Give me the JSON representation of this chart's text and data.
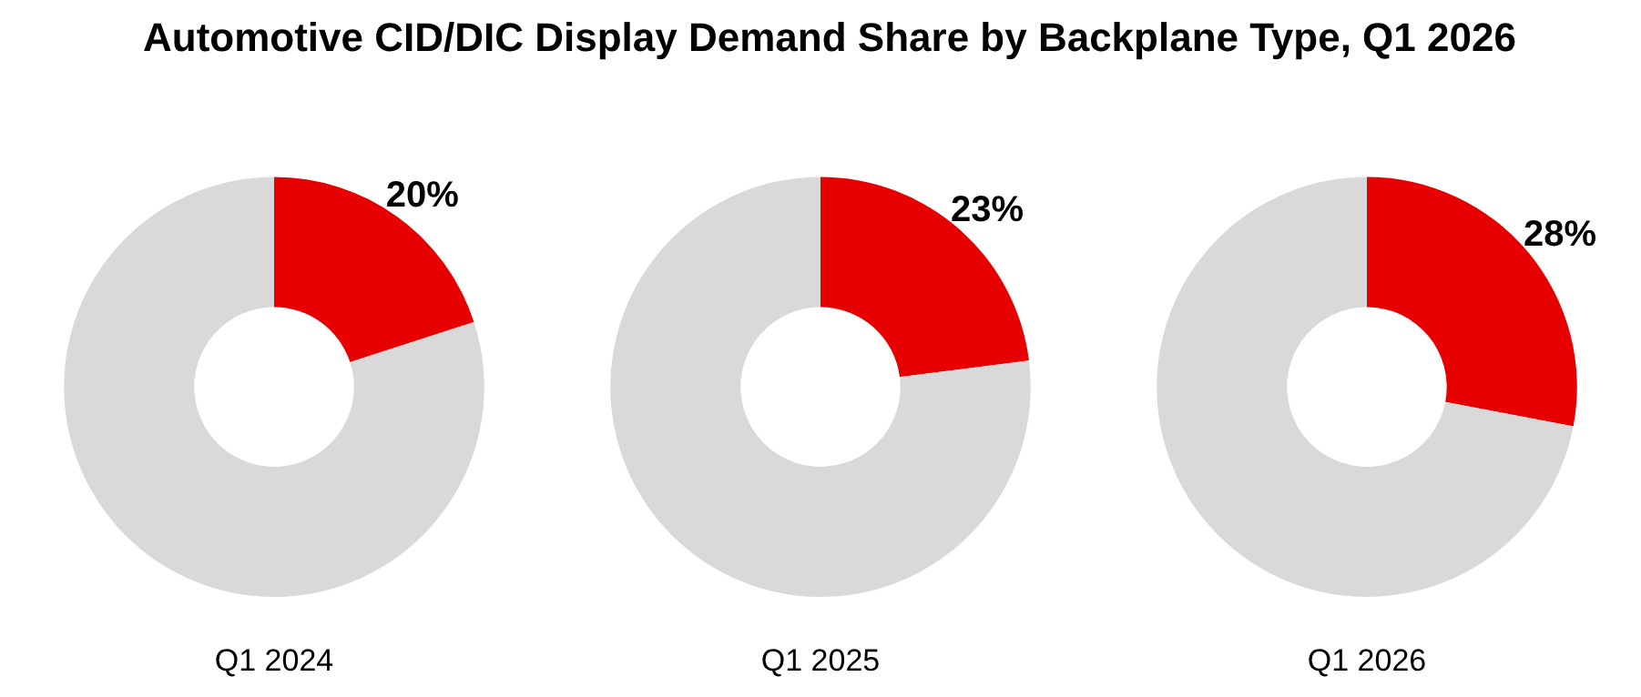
{
  "chart_data": [
    {
      "type": "donut",
      "title": "Automotive CID/DIC Display Demand Share by Backplane Type, Q1 2026",
      "xlabel": "Q1 2024",
      "categories": [
        null,
        null
      ],
      "values": [
        20,
        80
      ],
      "colors": [
        "#e60000",
        "#d9d9d9"
      ],
      "value_labels": [
        "20%",
        null
      ]
    },
    {
      "type": "donut",
      "xlabel": "Q1 2025",
      "categories": [
        null,
        null
      ],
      "values": [
        23,
        77
      ],
      "colors": [
        "#e60000",
        "#d9d9d9"
      ],
      "value_labels": [
        "23%",
        null
      ]
    },
    {
      "type": "donut",
      "xlabel": "Q1 2026",
      "categories": [
        null,
        null
      ],
      "values": [
        28,
        72
      ],
      "colors": [
        "#e60000",
        "#d9d9d9"
      ],
      "value_labels": [
        "28%",
        null
      ]
    }
  ]
}
